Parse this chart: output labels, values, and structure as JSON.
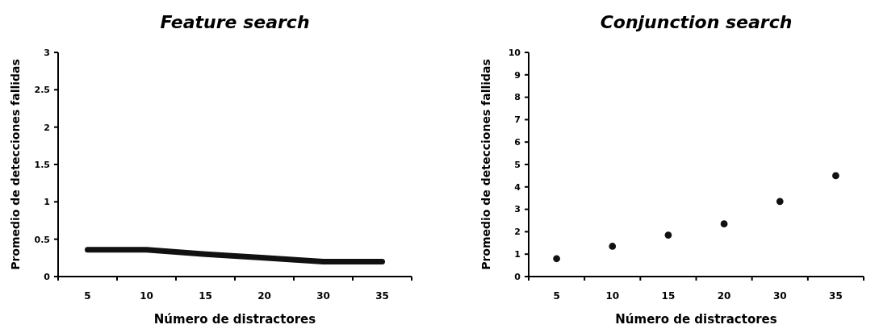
{
  "chart_data": [
    {
      "type": "line",
      "title": "Feature search",
      "xlabel": "Número de distractores",
      "ylabel": "Promedio de detecciones fallidas",
      "categories": [
        "5",
        "10",
        "15",
        "20",
        "30",
        "35"
      ],
      "series": [
        {
          "color": "#111111",
          "values": [
            0.36,
            0.36,
            0.3,
            0.25,
            0.2,
            0.2
          ]
        }
      ],
      "ylim": [
        0,
        3
      ],
      "yticks": [
        0,
        0.5,
        1,
        1.5,
        2,
        2.5,
        3
      ],
      "marker": "none"
    },
    {
      "type": "scatter",
      "title": "Conjunction search",
      "xlabel": "Número de distractores",
      "ylabel": "Promedio de detecciones fallidas",
      "categories": [
        "5",
        "10",
        "15",
        "20",
        "30",
        "35"
      ],
      "series": [
        {
          "color": "#111111",
          "values": [
            0.8,
            1.35,
            1.85,
            2.35,
            3.35,
            4.5
          ]
        }
      ],
      "ylim": [
        0,
        10
      ],
      "yticks": [
        0,
        1,
        2,
        3,
        4,
        5,
        6,
        7,
        8,
        9,
        10
      ],
      "marker": "circle"
    }
  ]
}
